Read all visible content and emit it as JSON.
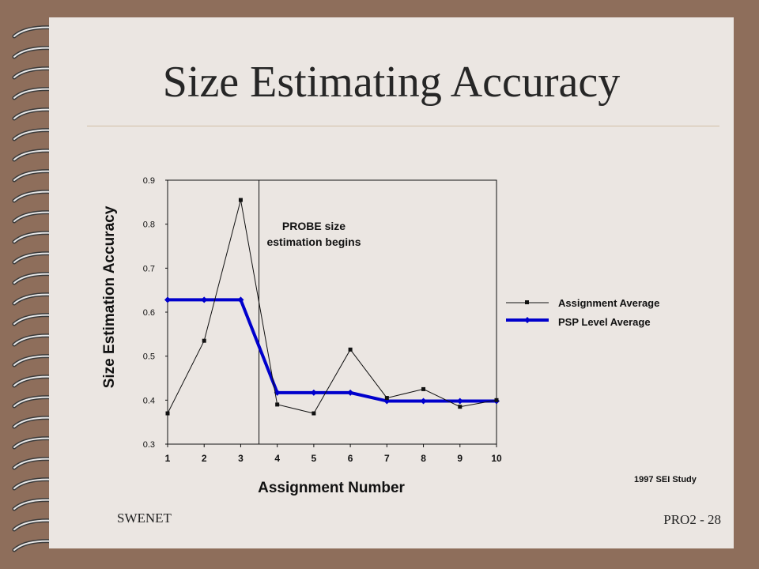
{
  "slide": {
    "title": "Size Estimating Accuracy",
    "footer_left": "SWENET",
    "footer_right": "PRO2 - 28",
    "colors": {
      "background": "#8e6e5b",
      "page": "#ebe6e2",
      "series_psp": "#0000cc"
    },
    "icons": [
      "spiral-binding-icon"
    ]
  },
  "chart_data": {
    "type": "line",
    "title": "",
    "xlabel": "Assignment Number",
    "ylabel": "Size Estimation Accuracy",
    "x": [
      1,
      2,
      3,
      4,
      5,
      6,
      7,
      8,
      9,
      10
    ],
    "xticks": [
      "1",
      "2",
      "3",
      "4",
      "5",
      "6",
      "7",
      "8",
      "9",
      "10"
    ],
    "ylim": [
      0.3,
      0.9
    ],
    "yticks": [
      "0.3",
      "0.4",
      "0.5",
      "0.6",
      "0.7",
      "0.8",
      "0.9"
    ],
    "series": [
      {
        "name": "Assignment Average",
        "values": [
          0.37,
          0.535,
          0.855,
          0.39,
          0.37,
          0.515,
          0.405,
          0.425,
          0.385,
          0.4
        ],
        "marker": "square",
        "color": "#111111"
      },
      {
        "name": "PSP Level Average",
        "values": [
          0.628,
          0.628,
          0.628,
          0.417,
          0.417,
          0.417,
          0.398,
          0.398,
          0.398,
          0.398
        ],
        "marker": "diamond",
        "color": "#0000cc"
      }
    ],
    "annotation": {
      "lines": [
        "PROBE size",
        "estimation begins"
      ],
      "divider_between": [
        3,
        4
      ]
    },
    "source": "1997 SEI Study",
    "legend_position": "right",
    "grid": false
  }
}
